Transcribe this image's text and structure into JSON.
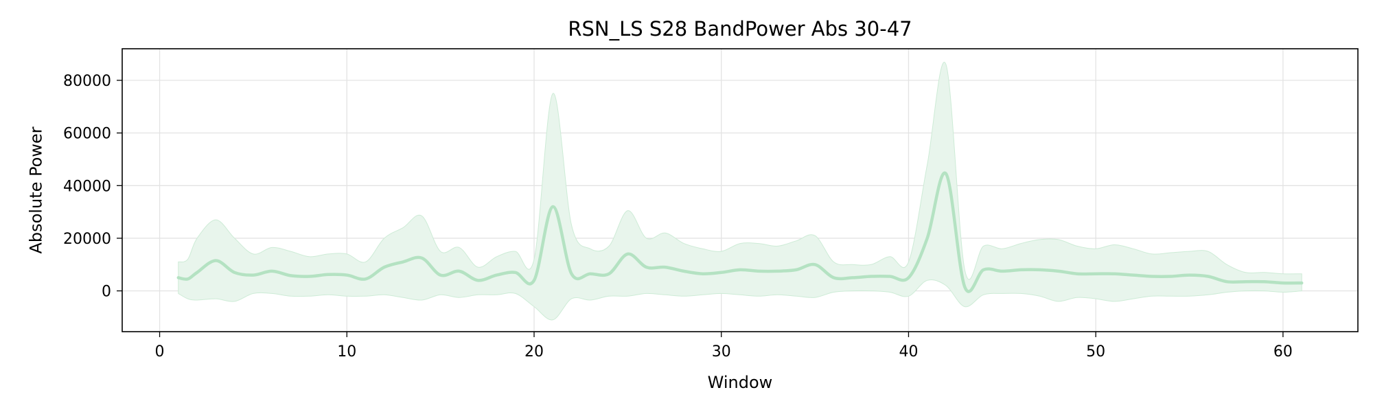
{
  "chart_data": {
    "type": "line",
    "title": "RSN_LS S28 BandPower Abs 30-47",
    "xlabel": "Window",
    "ylabel": "Absolute Power",
    "xlim": [
      -2,
      64
    ],
    "ylim": [
      -15500,
      92000
    ],
    "x_ticks": [
      0,
      10,
      20,
      30,
      40,
      50,
      60
    ],
    "y_ticks": [
      0,
      20000,
      40000,
      60000,
      80000
    ],
    "y_tick_labels": [
      "0",
      "20000",
      "40000",
      "60000",
      "80000"
    ],
    "grid": true,
    "legend": "none",
    "colors": {
      "line": "#b4e2c2",
      "band": "#e8f5ec",
      "band_edge": "#cdebd6",
      "grid": "#e3e3e3"
    },
    "series": [
      {
        "x": [
          1,
          1.5,
          2,
          3,
          4,
          5,
          6,
          7,
          8,
          9,
          10,
          11,
          12,
          13,
          14,
          15,
          16,
          17,
          18,
          19,
          20,
          21,
          22,
          23,
          24,
          25,
          26,
          27,
          28,
          29,
          30,
          31,
          32,
          33,
          34,
          35,
          36,
          37,
          38,
          39,
          40,
          41,
          42,
          43,
          44,
          45,
          46,
          47,
          48,
          49,
          50,
          51,
          52,
          53,
          54,
          55,
          56,
          57,
          58,
          59,
          60,
          61
        ],
        "values": [
          5000,
          4500,
          7000,
          11500,
          7000,
          6000,
          7500,
          5800,
          5500,
          6200,
          6000,
          4500,
          9000,
          11000,
          12500,
          6000,
          7500,
          4000,
          6000,
          7000,
          4000,
          32000,
          6500,
          6500,
          6500,
          14000,
          9000,
          9000,
          7500,
          6500,
          7000,
          8000,
          7500,
          7500,
          8000,
          10000,
          5000,
          5000,
          5500,
          5500,
          5000,
          20000,
          44500,
          1500,
          8000,
          7500,
          8000,
          8000,
          7500,
          6500,
          6500,
          6500,
          6000,
          5500,
          5500,
          6000,
          5500,
          3500,
          3500,
          3500,
          3000,
          3000
        ],
        "upper": [
          11000,
          12000,
          20000,
          27000,
          20000,
          14000,
          16500,
          15000,
          13000,
          14000,
          14000,
          11000,
          20000,
          24000,
          28500,
          15000,
          16500,
          9000,
          13000,
          15000,
          12000,
          75000,
          25000,
          16000,
          17000,
          30500,
          20000,
          22000,
          18000,
          16000,
          15000,
          18000,
          18000,
          17000,
          19000,
          21000,
          11000,
          10000,
          10000,
          13000,
          11000,
          48000,
          86000,
          8000,
          17000,
          16000,
          18000,
          19500,
          19500,
          17000,
          16000,
          17500,
          16000,
          14000,
          14500,
          15000,
          15000,
          10000,
          7000,
          7000,
          6500,
          6500
        ],
        "lower": [
          -1000,
          -3000,
          -3500,
          -3000,
          -4000,
          -1000,
          -1000,
          -2000,
          -2000,
          -1500,
          -2000,
          -2000,
          -1500,
          -2500,
          -3500,
          -1500,
          -2500,
          -1500,
          -1500,
          -1000,
          -6000,
          -11000,
          -3000,
          -3500,
          -2000,
          -2000,
          -1000,
          -1500,
          -2000,
          -1500,
          -1000,
          -1500,
          -2000,
          -1500,
          -2000,
          -2500,
          -500,
          0,
          0,
          -500,
          -2000,
          4000,
          2000,
          -6000,
          -1500,
          -1000,
          -1000,
          -2000,
          -4000,
          -2500,
          -3000,
          -4000,
          -3000,
          -2000,
          -2000,
          -2000,
          -1500,
          -500,
          0,
          0,
          -500,
          0
        ]
      }
    ]
  }
}
